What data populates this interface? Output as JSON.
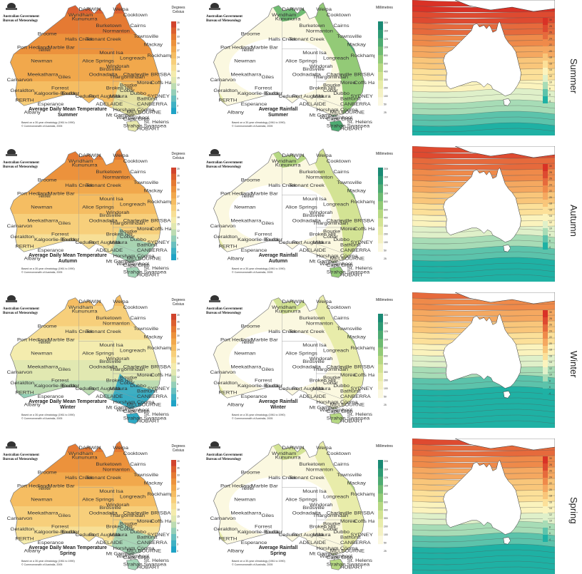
{
  "colors": {
    "temp_scale": [
      "#1fa3c6",
      "#3fb1c4",
      "#69c0bf",
      "#94cfb8",
      "#bddcb2",
      "#e1e8b1",
      "#f4ecae",
      "#f7df96",
      "#f7cf7b",
      "#f5bd62",
      "#f1a84c",
      "#ec923c",
      "#e57a33",
      "#dc6030",
      "#d1452e"
    ],
    "rain_scale": [
      "#ffffff",
      "#fbf8e0",
      "#f4f1c4",
      "#e8ecaa",
      "#d3e394",
      "#b6d883",
      "#93ca77",
      "#6fbb72",
      "#4eab72",
      "#2f9b74",
      "#1a8a74"
    ],
    "ocean_scale": [
      "#1fb1a4",
      "#5cc3ab",
      "#a7dcb6",
      "#dff0c9",
      "#fbf3bd",
      "#fce099",
      "#f9c67a",
      "#f5a860",
      "#ef8a4a",
      "#e66a3c",
      "#de4a30",
      "#d93226"
    ],
    "ocean_land": "#ffffff",
    "map_outline": "#777777"
  },
  "logo": {
    "line1": "Australian Government",
    "line2": "Bureau of Meteorology"
  },
  "temperature": {
    "legend_title": "Degrees Celsius",
    "legend_ticks": [
      "39",
      "36",
      "33",
      "30",
      "27",
      "24",
      "21",
      "18",
      "15",
      "12",
      "9",
      "6",
      "3",
      "0"
    ],
    "note_line1": "Based on a 30-year climatology (1961 to 1990)",
    "note_line2": "© Commonwealth of Australia, 2005",
    "panels": [
      {
        "season": "Summer",
        "title_line1": "Average Daily Mean Temperature",
        "title_line2": "Summer",
        "north": 13,
        "south": 7
      },
      {
        "season": "Autumn",
        "title_line1": "Average Daily Mean Temperature",
        "title_line2": "Autumn",
        "north": 12,
        "south": 5
      },
      {
        "season": "Winter",
        "title_line1": "Average Daily Mean Temperature",
        "title_line2": "Winter",
        "north": 9,
        "south": 2
      },
      {
        "season": "Spring",
        "title_line1": "Average Daily Mean Temperature",
        "title_line2": "Spring",
        "north": 12,
        "south": 5
      }
    ]
  },
  "rainfall": {
    "legend_title": "Millimetres",
    "legend_ticks": [
      "2000",
      "1600",
      "1200",
      "1000",
      "800",
      "600",
      "400",
      "300",
      "200",
      "100",
      "50",
      "25"
    ],
    "panels": [
      {
        "season": "Summer",
        "title_line1": "Average Rainfall",
        "title_line2": "Summer",
        "wet": 9
      },
      {
        "season": "Autumn",
        "title_line1": "Average Rainfall",
        "title_line2": "Autumn",
        "wet": 7
      },
      {
        "season": "Winter",
        "title_line1": "Average Rainfall",
        "title_line2": "Winter",
        "wet": 6
      },
      {
        "season": "Spring",
        "title_line1": "Average Rainfall",
        "title_line2": "Spring",
        "wet": 6
      }
    ]
  },
  "ocean": {
    "legend_ticks": [
      "30",
      "28",
      "26",
      "24",
      "22",
      "20",
      "18",
      "16",
      "14",
      "12",
      "10",
      "8",
      "6",
      "4"
    ],
    "seasons": [
      "Summer",
      "Autumn",
      "Winter",
      "Spring"
    ]
  },
  "cities": [
    "DARWIN",
    "Wyndham",
    "Kununurra",
    "Broome",
    "Port Hedland",
    "Halls Creek",
    "Tennant Creek",
    "Alice Springs",
    "Telfer",
    "Newman",
    "Giles",
    "Carnarvon",
    "Geraldton",
    "PERTH",
    "Kalgoorlie-Boulder",
    "Esperance",
    "Albany",
    "Meekatharra",
    "Eucla",
    "Ceduna",
    "Port Augusta",
    "ADELAIDE",
    "Mount Isa",
    "Cairns",
    "Townsville",
    "Mackay",
    "Rockhampton",
    "Longreach",
    "Charleville",
    "Birdsville",
    "BRISBANE",
    "Moree",
    "Bourke",
    "Dubbo",
    "SYDNEY",
    "CANBERRA",
    "MELBOURNE",
    "Mildura",
    "Broken Hill",
    "Oodnadatta",
    "Weipa",
    "Cooktown",
    "Normanton",
    "Burketown",
    "Coffs Harbour",
    "Cooma",
    "Horsham",
    "Warrnambool",
    "HOBART",
    "Cape Grim",
    "St. Helens",
    "Strahan",
    "Bathurst",
    "Forrest",
    "Marble Bar",
    "Cobar",
    "Thargomindah",
    "Windorah",
    "Mt Gambier",
    "Swansea"
  ]
}
